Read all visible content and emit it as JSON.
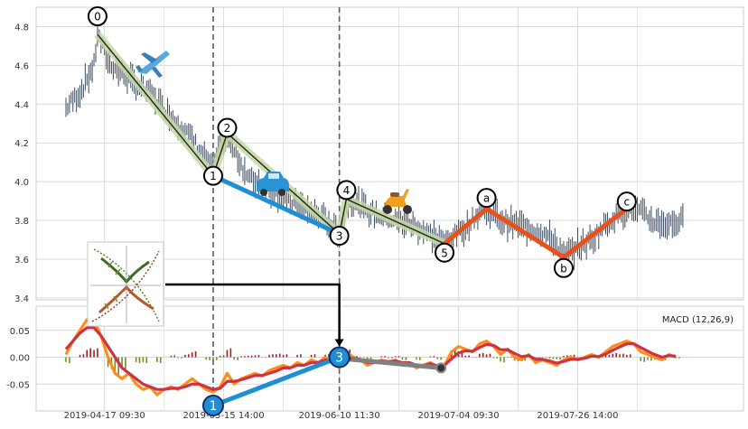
{
  "chart_data": [
    {
      "type": "line",
      "panel": "price",
      "title": "",
      "xlabel": "",
      "ylabel": "",
      "ylim": [
        3.39,
        4.9
      ],
      "yticks": [
        "3.4",
        "3.6",
        "3.8",
        "4.0",
        "4.2",
        "4.4",
        "4.6",
        "4.8"
      ],
      "grid": true,
      "series": [
        {
          "role": "price",
          "color": "#3d4a5c",
          "approx_close": [
            [
              0,
              4.38
            ],
            [
              4,
              4.46
            ],
            [
              8,
              4.6
            ],
            [
              9,
              4.76
            ],
            [
              12,
              4.62
            ],
            [
              16,
              4.56
            ],
            [
              20,
              4.5
            ],
            [
              24,
              4.46
            ],
            [
              28,
              4.38
            ],
            [
              32,
              4.3
            ],
            [
              36,
              4.22
            ],
            [
              40,
              4.12
            ],
            [
              42,
              4.05
            ],
            [
              44,
              4.18
            ],
            [
              46,
              4.24
            ],
            [
              48,
              4.16
            ],
            [
              52,
              4.02
            ],
            [
              56,
              3.98
            ],
            [
              60,
              3.94
            ],
            [
              64,
              3.9
            ],
            [
              68,
              3.86
            ],
            [
              72,
              3.82
            ],
            [
              76,
              3.78
            ],
            [
              78,
              3.73
            ],
            [
              80,
              3.88
            ],
            [
              82,
              3.9
            ],
            [
              86,
              3.85
            ],
            [
              90,
              3.82
            ],
            [
              94,
              3.8
            ],
            [
              98,
              3.78
            ],
            [
              102,
              3.75
            ],
            [
              106,
              3.7
            ],
            [
              108,
              3.68
            ],
            [
              110,
              3.72
            ],
            [
              114,
              3.76
            ],
            [
              118,
              3.84
            ],
            [
              120,
              3.86
            ],
            [
              124,
              3.8
            ],
            [
              128,
              3.78
            ],
            [
              132,
              3.76
            ],
            [
              136,
              3.74
            ],
            [
              140,
              3.68
            ],
            [
              142,
              3.61
            ],
            [
              146,
              3.66
            ],
            [
              150,
              3.7
            ],
            [
              154,
              3.78
            ],
            [
              158,
              3.84
            ],
            [
              160,
              3.86
            ],
            [
              164,
              3.84
            ],
            [
              168,
              3.79
            ],
            [
              172,
              3.78
            ],
            [
              176,
              3.8
            ]
          ]
        }
      ],
      "waves": [
        {
          "label": "0",
          "x": 9,
          "y": 4.76
        },
        {
          "label": "1",
          "x": 42,
          "y": 4.03
        },
        {
          "label": "2",
          "x": 46,
          "y": 4.25
        },
        {
          "label": "3",
          "x": 78,
          "y": 3.73
        },
        {
          "label": "4",
          "x": 80,
          "y": 3.91
        },
        {
          "label": "5",
          "x": 108,
          "y": 3.68
        },
        {
          "label": "a",
          "x": 120,
          "y": 3.86
        },
        {
          "label": "b",
          "x": 142,
          "y": 3.61
        },
        {
          "label": "c",
          "x": 160,
          "y": 3.86
        }
      ],
      "impulse_color": "#1a2a10",
      "impulse_band_color": "#c5d6a8",
      "wave13_color": "#1e8fd6",
      "correction_color": "#e8501c"
    },
    {
      "type": "line",
      "panel": "macd",
      "legend": "MACD (12,26,9)",
      "legend_position": "top-right",
      "ylim": [
        -0.1,
        0.095
      ],
      "yticks": [
        "0.05",
        "0.00",
        "-0.05"
      ],
      "x_tick_labels": [
        "2019-04-17 09:30",
        "2019-05-15 14:00",
        "2019-06-10 11:30",
        "2019-07-04 09:30",
        "2019-07-26 14:00"
      ],
      "x_tick_positions": [
        11,
        45,
        78,
        112,
        146
      ],
      "grid": true,
      "series": [
        {
          "role": "macd",
          "color": "#ff8c1a",
          "points": [
            [
              0,
              0.005
            ],
            [
              2,
              0.03
            ],
            [
              4,
              0.05
            ],
            [
              6,
              0.07
            ],
            [
              8,
              0.07
            ],
            [
              10,
              0.04
            ],
            [
              12,
              0.0
            ],
            [
              14,
              -0.03
            ],
            [
              16,
              -0.04
            ],
            [
              18,
              -0.03
            ],
            [
              20,
              -0.05
            ],
            [
              22,
              -0.06
            ],
            [
              24,
              -0.055
            ],
            [
              26,
              -0.07
            ],
            [
              28,
              -0.06
            ],
            [
              30,
              -0.055
            ],
            [
              32,
              -0.06
            ],
            [
              34,
              -0.05
            ],
            [
              36,
              -0.04
            ],
            [
              38,
              -0.05
            ],
            [
              40,
              -0.06
            ],
            [
              42,
              -0.065
            ],
            [
              44,
              -0.055
            ],
            [
              46,
              -0.03
            ],
            [
              48,
              -0.05
            ],
            [
              50,
              -0.04
            ],
            [
              52,
              -0.035
            ],
            [
              54,
              -0.03
            ],
            [
              56,
              -0.035
            ],
            [
              58,
              -0.025
            ],
            [
              60,
              -0.02
            ],
            [
              62,
              -0.015
            ],
            [
              64,
              -0.02
            ],
            [
              66,
              -0.01
            ],
            [
              68,
              -0.015
            ],
            [
              70,
              -0.005
            ],
            [
              72,
              -0.01
            ],
            [
              74,
              0.0
            ],
            [
              76,
              -0.01
            ],
            [
              78,
              -0.02
            ],
            [
              80,
              0.01
            ],
            [
              82,
              0.0
            ],
            [
              84,
              -0.005
            ],
            [
              86,
              -0.015
            ],
            [
              88,
              -0.01
            ],
            [
              90,
              -0.005
            ],
            [
              92,
              -0.01
            ],
            [
              94,
              -0.005
            ],
            [
              96,
              -0.015
            ],
            [
              98,
              -0.01
            ],
            [
              100,
              -0.02
            ],
            [
              102,
              -0.015
            ],
            [
              104,
              -0.01
            ],
            [
              106,
              -0.02
            ],
            [
              108,
              -0.015
            ],
            [
              110,
              0.01
            ],
            [
              112,
              0.02
            ],
            [
              114,
              0.015
            ],
            [
              116,
              0.01
            ],
            [
              118,
              0.025
            ],
            [
              120,
              0.03
            ],
            [
              122,
              0.02
            ],
            [
              124,
              0.005
            ],
            [
              126,
              0.015
            ],
            [
              128,
              0.0
            ],
            [
              130,
              -0.005
            ],
            [
              132,
              0.005
            ],
            [
              134,
              -0.01
            ],
            [
              136,
              -0.005
            ],
            [
              138,
              -0.01
            ],
            [
              140,
              -0.015
            ],
            [
              142,
              -0.005
            ],
            [
              144,
              0.0
            ],
            [
              146,
              -0.005
            ],
            [
              148,
              0.0
            ],
            [
              150,
              0.005
            ],
            [
              152,
              0.0
            ],
            [
              154,
              0.01
            ],
            [
              156,
              0.02
            ],
            [
              158,
              0.025
            ],
            [
              160,
              0.03
            ],
            [
              162,
              0.025
            ],
            [
              164,
              0.01
            ],
            [
              166,
              0.005
            ],
            [
              168,
              0.0
            ],
            [
              170,
              -0.005
            ],
            [
              172,
              0.005
            ],
            [
              174,
              0.0
            ]
          ]
        },
        {
          "role": "signal",
          "color": "#cc3344",
          "points": [
            [
              0,
              0.015
            ],
            [
              2,
              0.03
            ],
            [
              4,
              0.045
            ],
            [
              6,
              0.055
            ],
            [
              8,
              0.055
            ],
            [
              10,
              0.04
            ],
            [
              12,
              0.02
            ],
            [
              14,
              0.0
            ],
            [
              16,
              -0.02
            ],
            [
              18,
              -0.03
            ],
            [
              20,
              -0.04
            ],
            [
              22,
              -0.05
            ],
            [
              24,
              -0.055
            ],
            [
              26,
              -0.06
            ],
            [
              28,
              -0.06
            ],
            [
              30,
              -0.058
            ],
            [
              32,
              -0.058
            ],
            [
              34,
              -0.055
            ],
            [
              36,
              -0.05
            ],
            [
              38,
              -0.05
            ],
            [
              40,
              -0.055
            ],
            [
              42,
              -0.06
            ],
            [
              44,
              -0.058
            ],
            [
              46,
              -0.045
            ],
            [
              48,
              -0.045
            ],
            [
              50,
              -0.042
            ],
            [
              52,
              -0.038
            ],
            [
              54,
              -0.034
            ],
            [
              56,
              -0.034
            ],
            [
              58,
              -0.03
            ],
            [
              60,
              -0.026
            ],
            [
              62,
              -0.02
            ],
            [
              64,
              -0.02
            ],
            [
              66,
              -0.015
            ],
            [
              68,
              -0.015
            ],
            [
              70,
              -0.01
            ],
            [
              72,
              -0.01
            ],
            [
              74,
              -0.005
            ],
            [
              76,
              -0.008
            ],
            [
              78,
              -0.012
            ],
            [
              80,
              -0.003
            ],
            [
              82,
              -0.002
            ],
            [
              84,
              -0.004
            ],
            [
              86,
              -0.01
            ],
            [
              88,
              -0.01
            ],
            [
              90,
              -0.007
            ],
            [
              92,
              -0.008
            ],
            [
              94,
              -0.007
            ],
            [
              96,
              -0.01
            ],
            [
              98,
              -0.01
            ],
            [
              100,
              -0.015
            ],
            [
              102,
              -0.015
            ],
            [
              104,
              -0.012
            ],
            [
              106,
              -0.016
            ],
            [
              108,
              -0.015
            ],
            [
              110,
              -0.003
            ],
            [
              112,
              0.008
            ],
            [
              114,
              0.012
            ],
            [
              116,
              0.011
            ],
            [
              118,
              0.018
            ],
            [
              120,
              0.024
            ],
            [
              122,
              0.022
            ],
            [
              124,
              0.014
            ],
            [
              126,
              0.014
            ],
            [
              128,
              0.007
            ],
            [
              130,
              0.001
            ],
            [
              132,
              0.003
            ],
            [
              134,
              -0.004
            ],
            [
              136,
              -0.004
            ],
            [
              138,
              -0.007
            ],
            [
              140,
              -0.011
            ],
            [
              142,
              -0.008
            ],
            [
              144,
              -0.004
            ],
            [
              146,
              -0.004
            ],
            [
              148,
              -0.002
            ],
            [
              150,
              0.002
            ],
            [
              152,
              0.001
            ],
            [
              154,
              0.006
            ],
            [
              156,
              0.013
            ],
            [
              158,
              0.019
            ],
            [
              160,
              0.025
            ],
            [
              162,
              0.025
            ],
            [
              164,
              0.018
            ],
            [
              166,
              0.011
            ],
            [
              168,
              0.005
            ],
            [
              170,
              0.0
            ],
            [
              172,
              0.003
            ],
            [
              174,
              0.002
            ]
          ]
        }
      ],
      "histogram_up_color": "#a01e1e",
      "histogram_down_color": "#6f8f1e",
      "wave_markers": [
        {
          "label": "1",
          "x": 42,
          "y": -0.09
        },
        {
          "label": "3",
          "x": 78,
          "y": 0.0
        }
      ],
      "wave_marker_color": "#1e8fd6",
      "trendline": {
        "from": [
          78,
          -0.002
        ],
        "to": [
          107,
          -0.02
        ],
        "color": "#808080"
      }
    }
  ],
  "vertical_markers_x": [
    42,
    78
  ],
  "vertical_marker_color": "#4a5f78",
  "connector_color": "#000000",
  "icons": {
    "price_overlay": [
      "airplane",
      "car",
      "scooter"
    ],
    "thumbnail": "vine-sketch"
  }
}
